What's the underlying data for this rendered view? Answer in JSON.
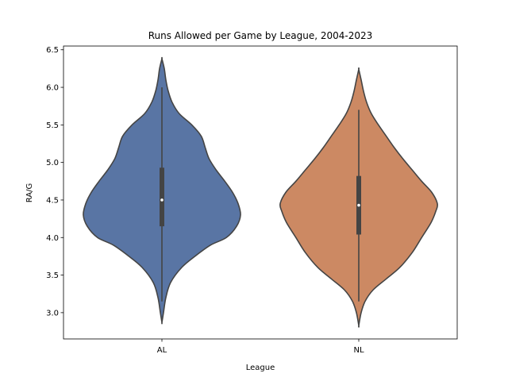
{
  "chart_data": {
    "type": "violin",
    "title": "Runs Allowed per Game by League, 2004-2023",
    "xlabel": "League",
    "ylabel": "RA/G",
    "ylim": [
      2.65,
      6.55
    ],
    "yticks": [
      3.0,
      3.5,
      4.0,
      4.5,
      5.0,
      5.5,
      6.0,
      6.5
    ],
    "ytick_labels": [
      "3.0",
      "3.5",
      "4.0",
      "4.5",
      "5.0",
      "5.5",
      "6.0",
      "6.5"
    ],
    "categories": [
      "AL",
      "NL"
    ],
    "grid": false,
    "legend": "none",
    "colors": {
      "AL": "#5975a4",
      "NL": "#cc8963",
      "outline": "#444444",
      "box": "#444444",
      "median": "#ffffff"
    },
    "series": [
      {
        "category": "AL",
        "min": 3.15,
        "q1": 4.15,
        "median": 4.5,
        "q3": 4.93,
        "max": 6.0,
        "kde_extent": [
          2.87,
          6.38
        ],
        "density": [
          [
            2.87,
            0.0
          ],
          [
            3.0,
            0.02
          ],
          [
            3.2,
            0.05
          ],
          [
            3.4,
            0.11
          ],
          [
            3.6,
            0.25
          ],
          [
            3.75,
            0.42
          ],
          [
            3.9,
            0.62
          ],
          [
            4.0,
            0.82
          ],
          [
            4.15,
            0.95
          ],
          [
            4.3,
            1.0
          ],
          [
            4.45,
            0.97
          ],
          [
            4.6,
            0.9
          ],
          [
            4.75,
            0.8
          ],
          [
            4.9,
            0.69
          ],
          [
            5.05,
            0.6
          ],
          [
            5.2,
            0.55
          ],
          [
            5.35,
            0.5
          ],
          [
            5.5,
            0.38
          ],
          [
            5.65,
            0.22
          ],
          [
            5.8,
            0.13
          ],
          [
            5.95,
            0.08
          ],
          [
            6.1,
            0.05
          ],
          [
            6.25,
            0.03
          ],
          [
            6.38,
            0.0
          ]
        ]
      },
      {
        "category": "NL",
        "min": 3.15,
        "q1": 4.04,
        "median": 4.43,
        "q3": 4.82,
        "max": 5.7,
        "kde_extent": [
          2.83,
          6.24
        ],
        "density": [
          [
            2.83,
            0.0
          ],
          [
            3.0,
            0.03
          ],
          [
            3.15,
            0.08
          ],
          [
            3.3,
            0.18
          ],
          [
            3.45,
            0.35
          ],
          [
            3.6,
            0.52
          ],
          [
            3.8,
            0.68
          ],
          [
            4.0,
            0.8
          ],
          [
            4.2,
            0.92
          ],
          [
            4.35,
            0.98
          ],
          [
            4.45,
            1.0
          ],
          [
            4.6,
            0.93
          ],
          [
            4.75,
            0.8
          ],
          [
            4.9,
            0.68
          ],
          [
            5.05,
            0.56
          ],
          [
            5.2,
            0.45
          ],
          [
            5.35,
            0.35
          ],
          [
            5.5,
            0.25
          ],
          [
            5.65,
            0.16
          ],
          [
            5.8,
            0.1
          ],
          [
            5.95,
            0.06
          ],
          [
            6.1,
            0.03
          ],
          [
            6.24,
            0.0
          ]
        ]
      }
    ]
  }
}
